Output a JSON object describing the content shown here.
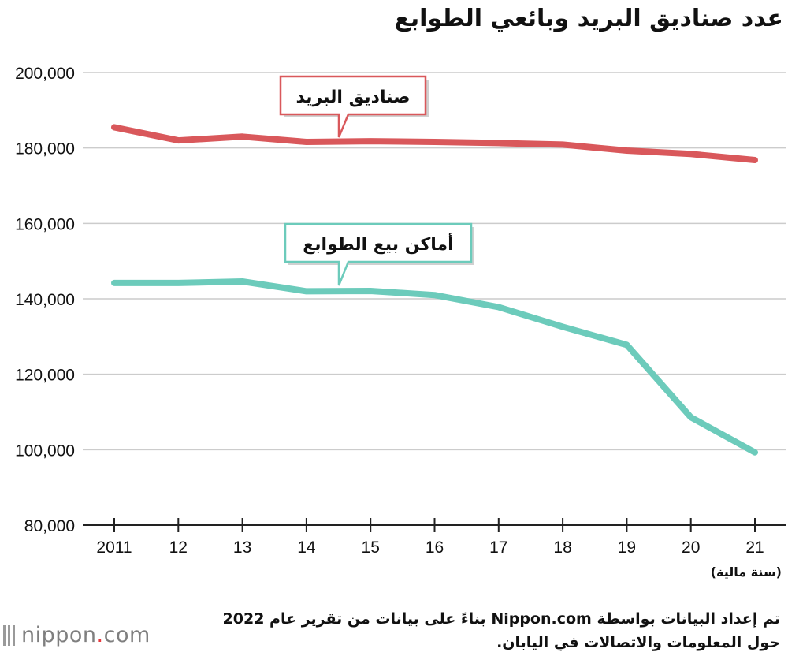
{
  "title": "عدد صناديق البريد وبائعي الطوابع",
  "unit_note": "(سنة مالية)",
  "source": "تم إعداد البيانات بواسطة Nippon.com بناءً على بيانات من تقرير عام 2022 حول المعلومات والاتصالات في اليابان.",
  "logo": {
    "left": "nippon",
    "dot": ".",
    "right": "com"
  },
  "colors": {
    "mailboxes": "#d9585b",
    "stamp_sellers": "#6ccbbb",
    "grid": "#cccccc",
    "axis": "#222222"
  },
  "chart_data": {
    "type": "line",
    "title": "عدد صناديق البريد وبائعي الطوابع",
    "xlabel": "(سنة مالية)",
    "ylabel": "",
    "categories": [
      "2011",
      "12",
      "13",
      "14",
      "15",
      "16",
      "17",
      "18",
      "19",
      "20",
      "21"
    ],
    "ylim": [
      80000,
      200000
    ],
    "yticks": [
      80000,
      100000,
      120000,
      140000,
      160000,
      180000,
      200000
    ],
    "ytick_labels": [
      "80,000",
      "100,000",
      "120,000",
      "140,000",
      "160,000",
      "180,000",
      "200,000"
    ],
    "grid": true,
    "series": [
      {
        "name": "صناديق البريد",
        "color": "#d9585b",
        "values": [
          185500,
          182000,
          183000,
          181600,
          181800,
          181600,
          181300,
          180900,
          179300,
          178400,
          176800
        ]
      },
      {
        "name": "أماكن بيع الطوابع",
        "color": "#6ccbbb",
        "values": [
          144200,
          144200,
          144600,
          142000,
          142100,
          141000,
          137800,
          132600,
          127800,
          108600,
          99300
        ]
      }
    ]
  }
}
